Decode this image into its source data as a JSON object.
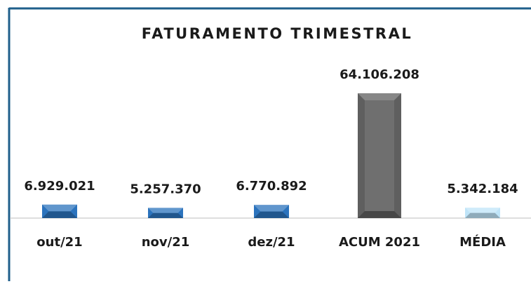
{
  "chart_data": {
    "type": "bar",
    "title": "FATURAMENTO TRIMESTRAL",
    "categories": [
      "out/21",
      "nov/21",
      "dez/21",
      "ACUM 2021",
      "MÉDIA"
    ],
    "values": [
      6929021,
      5257370,
      6770892,
      64106208,
      5342184
    ],
    "value_labels": [
      "6.929.021",
      "5.257.370",
      "6.770.892",
      "64.106.208",
      "5.342.184"
    ],
    "colors": [
      "#2b73bd",
      "#2b73bd",
      "#2b73bd",
      "#5f5f5f",
      "#bfe4f8"
    ]
  }
}
